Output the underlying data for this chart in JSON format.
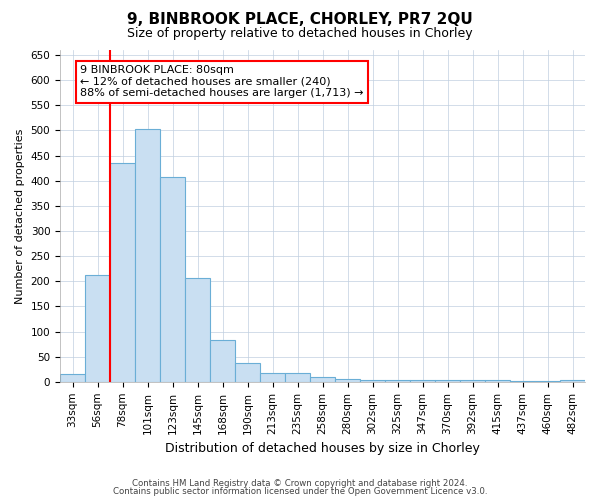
{
  "title": "9, BINBROOK PLACE, CHORLEY, PR7 2QU",
  "subtitle": "Size of property relative to detached houses in Chorley",
  "xlabel": "Distribution of detached houses by size in Chorley",
  "ylabel": "Number of detached properties",
  "annotation_title": "9 BINBROOK PLACE: 80sqm",
  "annotation_line1": "← 12% of detached houses are smaller (240)",
  "annotation_line2": "88% of semi-detached houses are larger (1,713) →",
  "footer1": "Contains HM Land Registry data © Crown copyright and database right 2024.",
  "footer2": "Contains public sector information licensed under the Open Government Licence v3.0.",
  "bar_color": "#c9dff2",
  "bar_edge_color": "#6aaed6",
  "redline_bin": 2,
  "categories": [
    "33sqm",
    "56sqm",
    "78sqm",
    "101sqm",
    "123sqm",
    "145sqm",
    "168sqm",
    "190sqm",
    "213sqm",
    "235sqm",
    "258sqm",
    "280sqm",
    "302sqm",
    "325sqm",
    "347sqm",
    "370sqm",
    "392sqm",
    "415sqm",
    "437sqm",
    "460sqm",
    "482sqm"
  ],
  "values": [
    15,
    212,
    435,
    503,
    408,
    207,
    84,
    38,
    18,
    17,
    10,
    5,
    4,
    3,
    3,
    3,
    3,
    3,
    1,
    1,
    4
  ],
  "ylim": [
    0,
    660
  ],
  "yticks": [
    0,
    50,
    100,
    150,
    200,
    250,
    300,
    350,
    400,
    450,
    500,
    550,
    600,
    650
  ],
  "background_color": "#ffffff",
  "grid_color": "#c0cfe0",
  "title_fontsize": 11,
  "subtitle_fontsize": 9,
  "ylabel_fontsize": 8,
  "xlabel_fontsize": 9,
  "tick_fontsize": 7.5,
  "annotation_fontsize": 8
}
